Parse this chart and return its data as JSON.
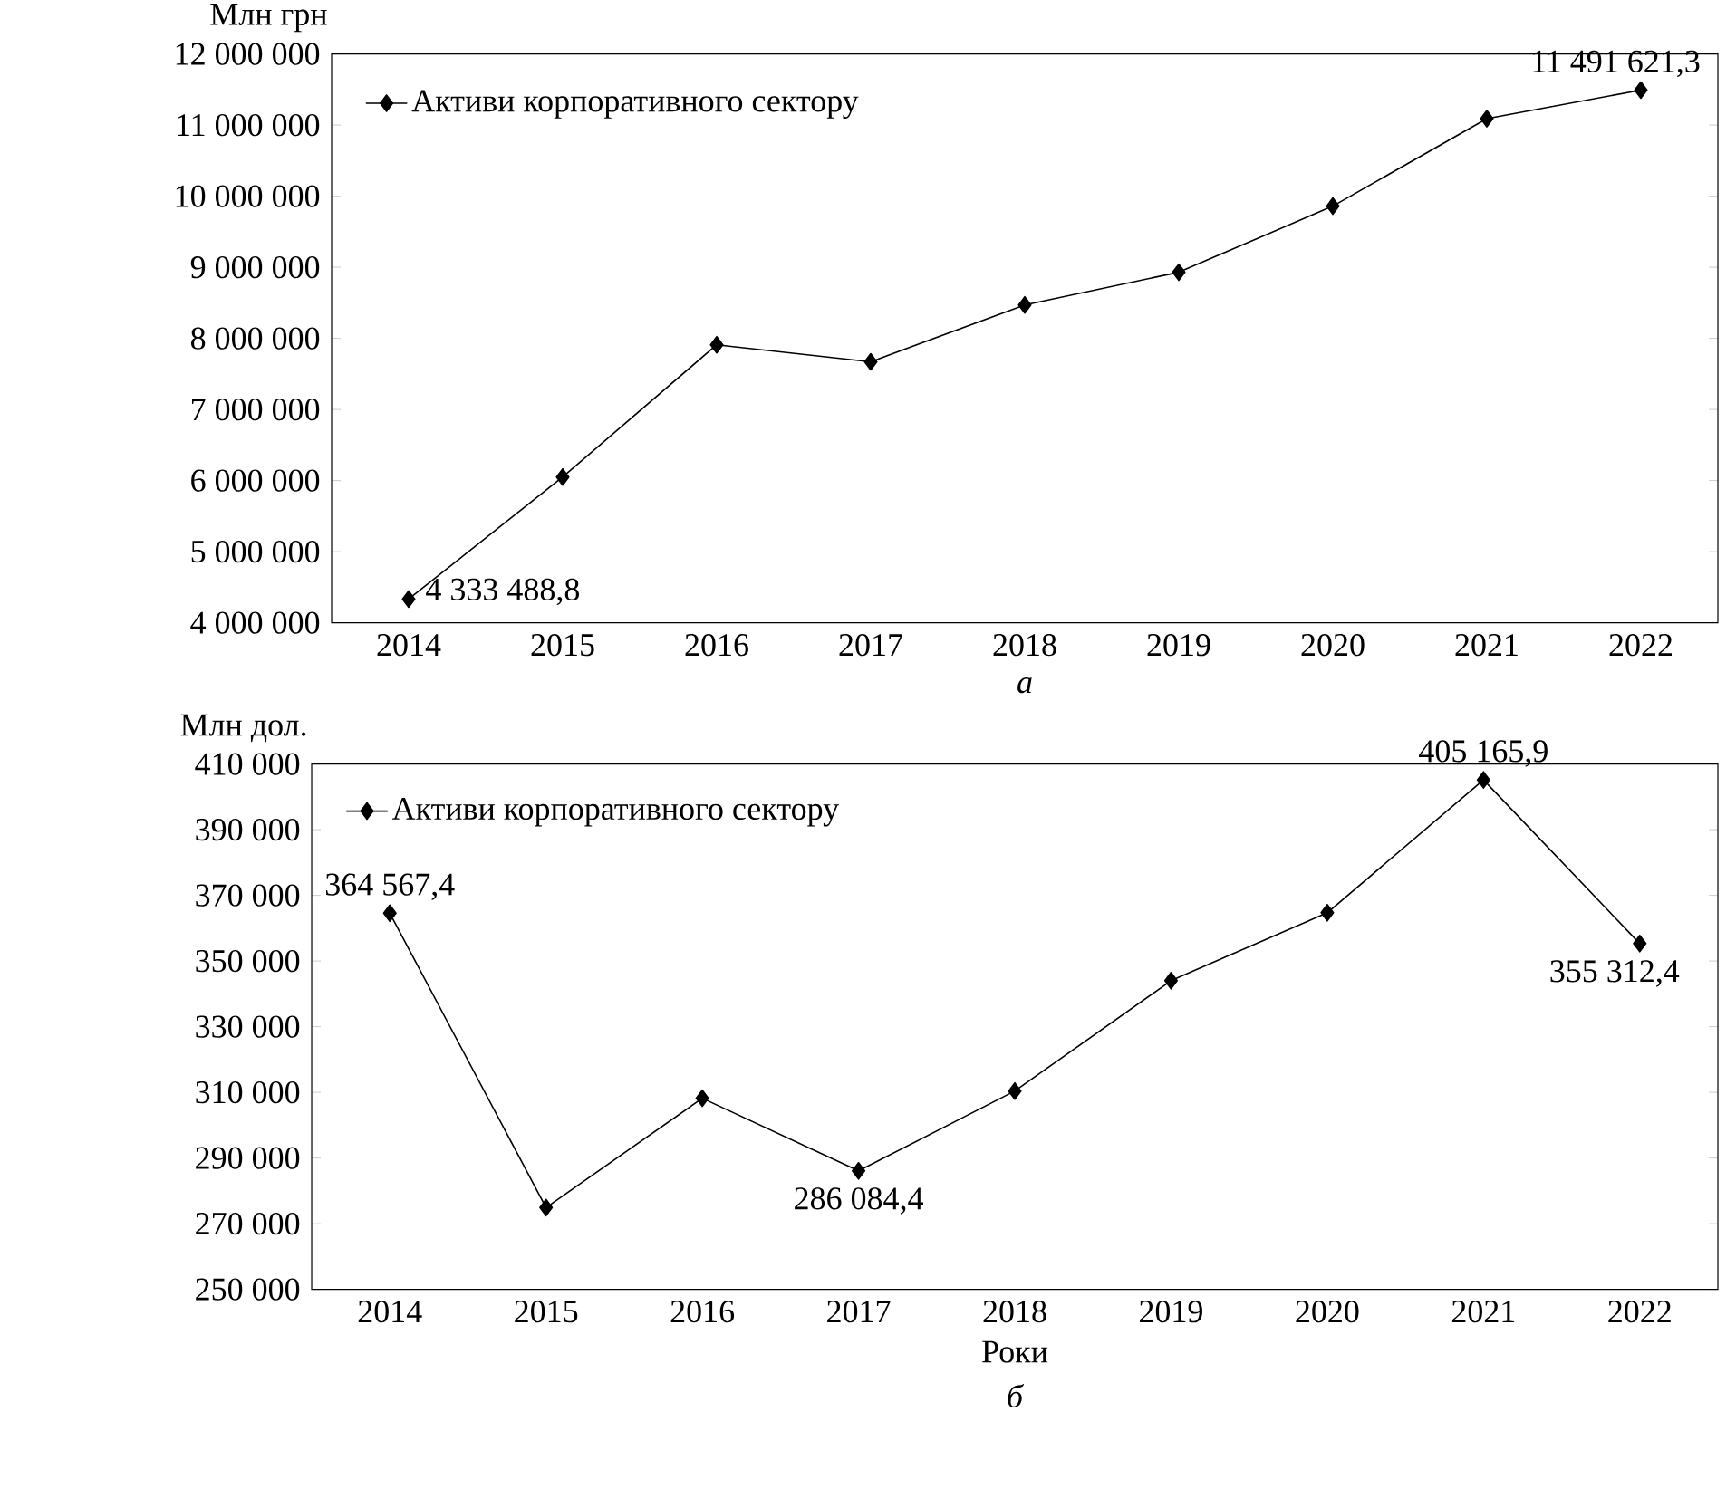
{
  "chart_data": [
    {
      "type": "line",
      "ylabel": "Млн грн",
      "categories": [
        "2014",
        "2015",
        "2016",
        "2017",
        "2018",
        "2019",
        "2020",
        "2021",
        "2022"
      ],
      "series": [
        {
          "name": "Активи корпоративного сектору",
          "color": "#000000",
          "values": [
            4333488.8,
            6050000,
            7910000,
            7670000,
            8470000,
            8930000,
            9860000,
            11090000,
            11491621.3
          ],
          "value_labels": [
            "4 333 488,8",
            null,
            null,
            null,
            null,
            null,
            null,
            null,
            "11 491 621,3"
          ]
        }
      ],
      "ylim": [
        4000000,
        12000000
      ],
      "yticks": [
        {
          "value": 4000000,
          "label": "4 000 000"
        },
        {
          "value": 5000000,
          "label": "5 000 000"
        },
        {
          "value": 6000000,
          "label": "6 000 000"
        },
        {
          "value": 7000000,
          "label": "7 000 000"
        },
        {
          "value": 8000000,
          "label": "8 000 000"
        },
        {
          "value": 9000000,
          "label": "9 000 000"
        },
        {
          "value": 10000000,
          "label": "10 000 000"
        },
        {
          "value": 11000000,
          "label": "11 000 000"
        },
        {
          "value": 12000000,
          "label": "12 000 000"
        }
      ],
      "marker": "diamond",
      "line_style": "solid",
      "legend": "top left",
      "annotations": [
        "а"
      ]
    },
    {
      "type": "line",
      "ylabel": "Млн дол.",
      "xlabel": "Роки",
      "categories": [
        "2014",
        "2015",
        "2016",
        "2017",
        "2018",
        "2019",
        "2020",
        "2021",
        "2022"
      ],
      "series": [
        {
          "name": "Активи корпоративного сектору",
          "color": "#000000",
          "values": [
            364567.4,
            274900,
            308200,
            286084.4,
            310400,
            344000,
            364700,
            405165.9,
            355312.4
          ],
          "value_labels": [
            "364 567,4",
            null,
            null,
            "286 084,4",
            null,
            null,
            null,
            "405 165,9",
            "355 312,4"
          ]
        }
      ],
      "ylim": [
        250000,
        410000
      ],
      "yticks": [
        {
          "value": 250000,
          "label": "250 000"
        },
        {
          "value": 270000,
          "label": "270 000"
        },
        {
          "value": 290000,
          "label": "290 000"
        },
        {
          "value": 310000,
          "label": "310 000"
        },
        {
          "value": 330000,
          "label": "330 000"
        },
        {
          "value": 350000,
          "label": "350 000"
        },
        {
          "value": 370000,
          "label": "370 000"
        },
        {
          "value": 390000,
          "label": "390 000"
        },
        {
          "value": 410000,
          "label": "410 000"
        }
      ],
      "marker": "diamond",
      "line_style": "solid",
      "legend": "top left",
      "annotations": [
        "б"
      ]
    }
  ]
}
